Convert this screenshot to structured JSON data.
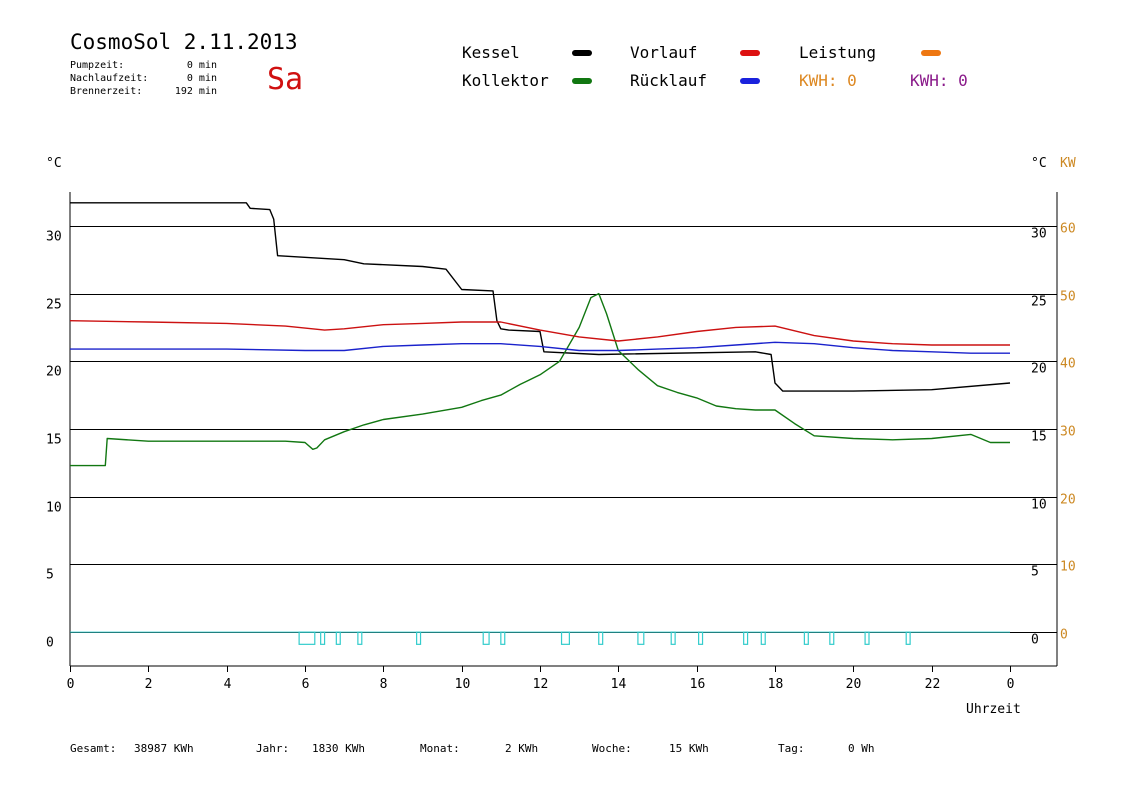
{
  "header": {
    "title": "CosmoSol 2.11.2013",
    "day": "Sa",
    "stats": [
      {
        "label": "Pumpzeit:",
        "value": "0 min"
      },
      {
        "label": "Nachlaufzeit:",
        "value": "0 min"
      },
      {
        "label": "Brennerzeit:",
        "value": "192 min"
      }
    ]
  },
  "legend": {
    "kessel": "Kessel",
    "kollektor": "Kollektor",
    "vorlauf": "Vorlauf",
    "ruecklauf": "Rücklauf",
    "leistung": "Leistung",
    "kwh1": "KWH: 0",
    "kwh2": "KWH: 0"
  },
  "colors": {
    "kessel": "#000000",
    "kollektor": "#117711",
    "vorlauf": "#cc1111",
    "ruecklauf": "#1a22cc",
    "leistung": "#ee7711",
    "kwh2": "#8a1a8a",
    "pump": "#33cccc",
    "kw_axis": "#cc8822"
  },
  "footer": [
    {
      "label": "Gesamt:",
      "value": "38987 KWh"
    },
    {
      "label": "Jahr:",
      "value": "1830 KWh"
    },
    {
      "label": "Monat:",
      "value": "2 KWh"
    },
    {
      "label": "Woche:",
      "value": "15 KWh"
    },
    {
      "label": "Tag:",
      "value": "0 Wh"
    }
  ],
  "chart_data": {
    "type": "line",
    "xlabel": "Uhrzeit",
    "y_left_unit": "°C",
    "y_right_unit": "°C",
    "y_right2_unit": "KW",
    "xlim": [
      0,
      24
    ],
    "ylim": [
      -2.5,
      32.5
    ],
    "x_ticks": [
      "0",
      "2",
      "4",
      "6",
      "8",
      "10",
      "12",
      "14",
      "16",
      "18",
      "20",
      "22",
      "0"
    ],
    "y_ticks": [
      0,
      5,
      10,
      15,
      20,
      25,
      30
    ],
    "y_right2_ticks": [
      0,
      10,
      20,
      30,
      40,
      50,
      60
    ],
    "grid": "horizontal",
    "series": [
      {
        "name": "Kessel",
        "key": "kessel",
        "x": [
          0,
          4.5,
          4.6,
          5.1,
          5.2,
          5.3,
          7.0,
          7.5,
          9.0,
          9.6,
          10.0,
          10.8,
          10.9,
          11.0,
          11.2,
          12.0,
          12.1,
          13.5,
          17.5,
          17.9,
          18.0,
          18.2,
          20.0,
          22.0,
          24.0
        ],
        "y": [
          31.7,
          31.7,
          31.3,
          31.2,
          30.5,
          27.8,
          27.5,
          27.2,
          27.0,
          26.8,
          25.3,
          25.2,
          23.0,
          22.4,
          22.3,
          22.2,
          20.7,
          20.5,
          20.7,
          20.5,
          18.4,
          17.8,
          17.8,
          17.9,
          18.4
        ]
      },
      {
        "name": "Kollektor",
        "key": "kollektor",
        "x": [
          0,
          0.9,
          0.95,
          2,
          4,
          5.5,
          6.0,
          6.2,
          6.3,
          6.5,
          7,
          7.5,
          8,
          9,
          10,
          10.5,
          11,
          11.5,
          12,
          12.5,
          13.0,
          13.3,
          13.5,
          13.7,
          14.0,
          14.5,
          15,
          15.5,
          16,
          16.5,
          17,
          17.5,
          18,
          18.5,
          19,
          20,
          21,
          22,
          23,
          23.5,
          24
        ],
        "y": [
          12.3,
          12.3,
          14.3,
          14.1,
          14.1,
          14.1,
          14.0,
          13.5,
          13.6,
          14.2,
          14.8,
          15.3,
          15.7,
          16.1,
          16.6,
          17.1,
          17.5,
          18.3,
          19.0,
          20.0,
          22.5,
          24.7,
          25.0,
          23.5,
          20.8,
          19.4,
          18.2,
          17.7,
          17.3,
          16.7,
          16.5,
          16.4,
          16.4,
          15.4,
          14.5,
          14.3,
          14.2,
          14.3,
          14.6,
          14.0,
          14.0
        ]
      },
      {
        "name": "Vorlauf",
        "key": "vorlauf",
        "x": [
          0,
          2,
          4,
          5.5,
          6.5,
          7.0,
          8,
          9,
          10,
          11,
          12,
          13,
          14,
          15,
          16,
          17,
          18,
          19,
          20,
          21,
          22,
          23,
          24
        ],
        "y": [
          23.0,
          22.9,
          22.8,
          22.6,
          22.3,
          22.4,
          22.7,
          22.8,
          22.9,
          22.9,
          22.3,
          21.8,
          21.5,
          21.8,
          22.2,
          22.5,
          22.6,
          21.9,
          21.5,
          21.3,
          21.2,
          21.2,
          21.2
        ]
      },
      {
        "name": "Rücklauf",
        "key": "ruecklauf",
        "x": [
          0,
          2,
          4,
          6,
          7,
          8,
          9,
          10,
          11,
          12,
          13,
          14,
          15,
          16,
          17,
          18,
          19,
          20,
          21,
          22,
          23,
          24
        ],
        "y": [
          20.9,
          20.9,
          20.9,
          20.8,
          20.8,
          21.1,
          21.2,
          21.3,
          21.3,
          21.1,
          20.8,
          20.8,
          20.9,
          21.0,
          21.2,
          21.4,
          21.3,
          21.0,
          20.8,
          20.7,
          20.6,
          20.6
        ]
      }
    ],
    "pump_cycles": {
      "name": "Pumpzeit",
      "level": 0,
      "height": -0.9,
      "start": [
        5.85,
        6.4,
        6.8,
        7.35,
        8.85,
        10.55,
        11.0,
        12.55,
        13.5,
        14.5,
        15.35,
        16.05,
        17.2,
        17.65,
        18.75,
        19.4,
        20.3,
        21.35
      ],
      "end": [
        6.25,
        6.5,
        6.9,
        7.45,
        8.95,
        10.7,
        11.1,
        12.75,
        13.6,
        14.65,
        15.45,
        16.15,
        17.3,
        17.75,
        18.85,
        19.5,
        20.4,
        21.45
      ]
    }
  }
}
